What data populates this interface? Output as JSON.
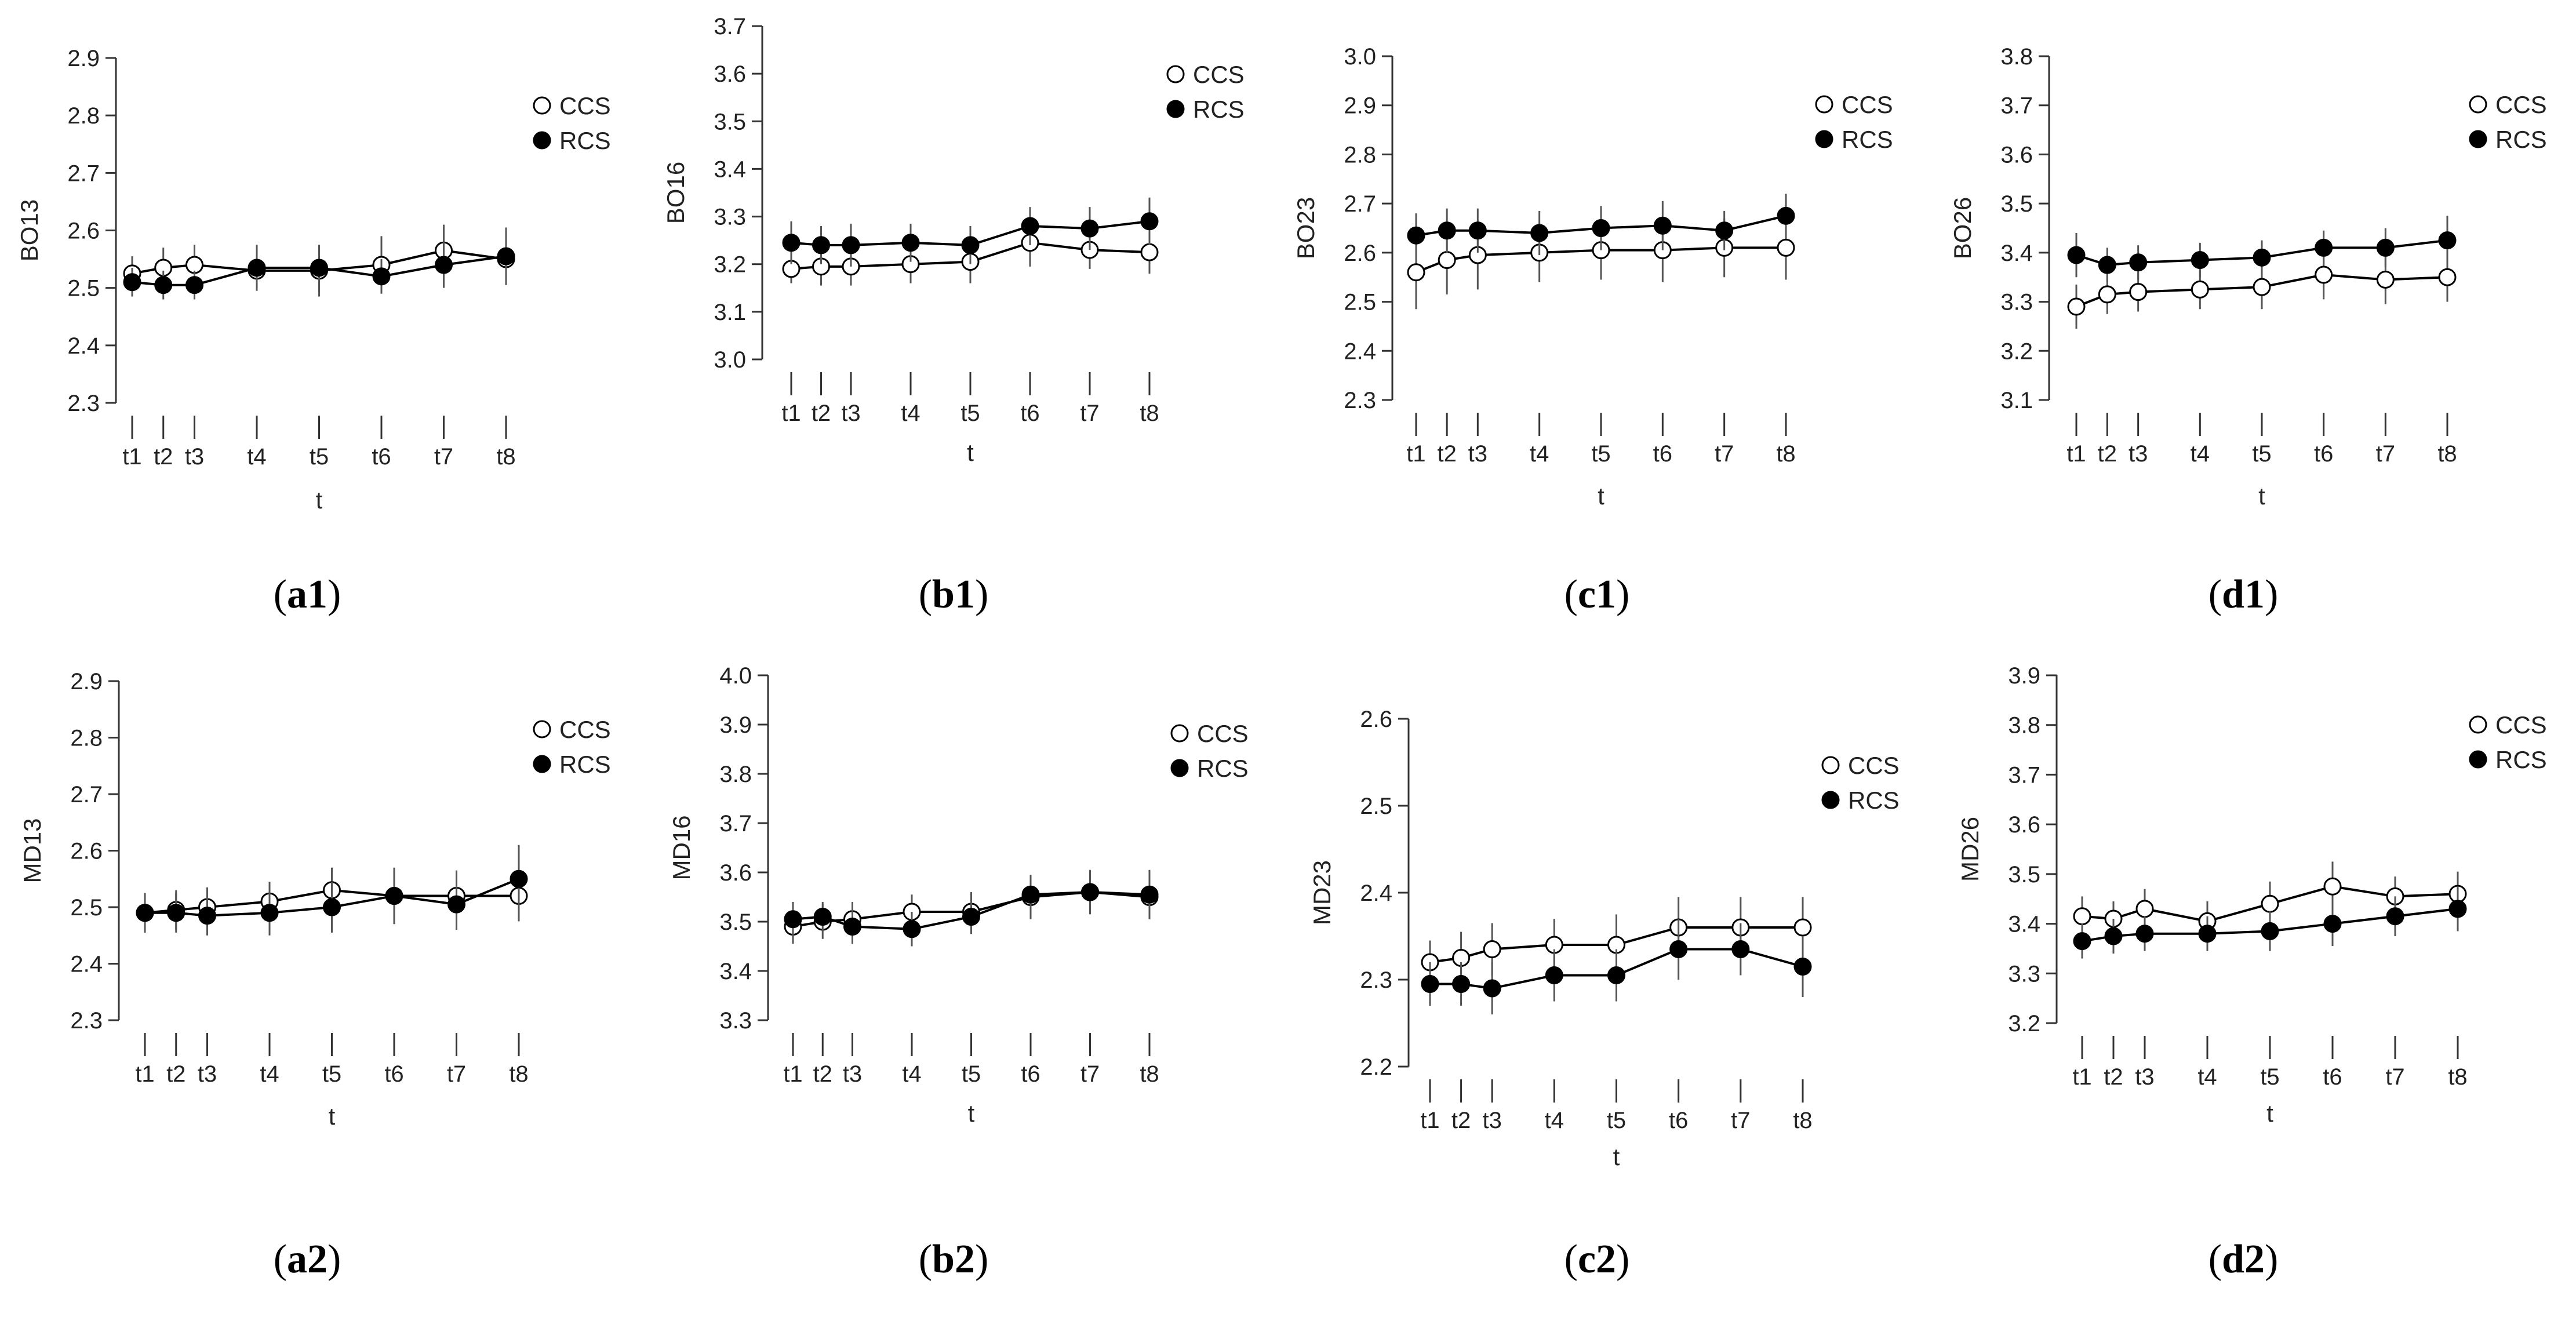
{
  "figure": {
    "legend": {
      "ccs_label": "CCS",
      "rcs_label": "RCS"
    },
    "x_title": "t",
    "x_categories": [
      "t1",
      "t2",
      "t3",
      "t4",
      "t5",
      "t6",
      "t7",
      "t8"
    ],
    "x_positions": [
      1,
      1.5,
      2,
      3,
      4,
      5,
      6,
      7
    ]
  },
  "chart_data": [
    {
      "id": "a1",
      "caption_letter": "a1",
      "type": "line",
      "ylabel": "BO13",
      "xlabel": "t",
      "yticks": [
        "2.3",
        "2.4",
        "2.5",
        "2.6",
        "2.7",
        "2.8",
        "2.9"
      ],
      "ylim": [
        2.3,
        2.9
      ],
      "categories": [
        "t1",
        "t2",
        "t3",
        "t4",
        "t5",
        "t6",
        "t7",
        "t8"
      ],
      "series": [
        {
          "name": "CCS",
          "values": [
            2.525,
            2.535,
            2.54,
            2.53,
            2.53,
            2.54,
            2.565,
            2.55
          ],
          "errors": [
            0.03,
            0.035,
            0.035,
            0.035,
            0.045,
            0.05,
            0.045,
            0.045
          ]
        },
        {
          "name": "RCS",
          "values": [
            2.51,
            2.505,
            2.505,
            2.535,
            2.535,
            2.52,
            2.54,
            2.555
          ],
          "errors": [
            0.025,
            0.025,
            0.025,
            0.04,
            0.03,
            0.03,
            0.04,
            0.05
          ]
        }
      ]
    },
    {
      "id": "b1",
      "caption_letter": "b1",
      "type": "line",
      "ylabel": "BO16",
      "xlabel": "t",
      "yticks": [
        "3.0",
        "3.1",
        "3.2",
        "3.3",
        "3.4",
        "3.5",
        "3.6",
        "3.7"
      ],
      "ylim": [
        3.0,
        3.7
      ],
      "categories": [
        "t1",
        "t2",
        "t3",
        "t4",
        "t5",
        "t6",
        "t7",
        "t8"
      ],
      "series": [
        {
          "name": "CCS",
          "values": [
            3.19,
            3.195,
            3.195,
            3.2,
            3.205,
            3.245,
            3.23,
            3.225
          ],
          "errors": [
            0.03,
            0.04,
            0.04,
            0.04,
            0.045,
            0.05,
            0.04,
            0.045
          ]
        },
        {
          "name": "RCS",
          "values": [
            3.245,
            3.24,
            3.24,
            3.245,
            3.24,
            3.28,
            3.275,
            3.29
          ],
          "errors": [
            0.045,
            0.04,
            0.045,
            0.04,
            0.04,
            0.04,
            0.045,
            0.05
          ]
        }
      ]
    },
    {
      "id": "c1",
      "caption_letter": "c1",
      "type": "line",
      "ylabel": "BO23",
      "xlabel": "t",
      "yticks": [
        "2.3",
        "2.4",
        "2.5",
        "2.6",
        "2.7",
        "2.8",
        "2.9",
        "3.0"
      ],
      "ylim": [
        2.3,
        3.0
      ],
      "categories": [
        "t1",
        "t2",
        "t3",
        "t4",
        "t5",
        "t6",
        "t7",
        "t8"
      ],
      "series": [
        {
          "name": "CCS",
          "values": [
            2.56,
            2.585,
            2.595,
            2.6,
            2.605,
            2.605,
            2.61,
            2.61
          ],
          "errors": [
            0.075,
            0.07,
            0.07,
            0.06,
            0.06,
            0.065,
            0.06,
            0.065
          ]
        },
        {
          "name": "RCS",
          "values": [
            2.635,
            2.645,
            2.645,
            2.64,
            2.65,
            2.655,
            2.645,
            2.675
          ],
          "errors": [
            0.045,
            0.045,
            0.045,
            0.045,
            0.045,
            0.05,
            0.04,
            0.045
          ]
        }
      ]
    },
    {
      "id": "d1",
      "caption_letter": "d1",
      "type": "line",
      "ylabel": "BO26",
      "xlabel": "t",
      "yticks": [
        "3.1",
        "3.2",
        "3.3",
        "3.4",
        "3.5",
        "3.6",
        "3.7",
        "3.8"
      ],
      "ylim": [
        3.1,
        3.8
      ],
      "categories": [
        "t1",
        "t2",
        "t3",
        "t4",
        "t5",
        "t6",
        "t7",
        "t8"
      ],
      "series": [
        {
          "name": "CCS",
          "values": [
            3.29,
            3.315,
            3.32,
            3.325,
            3.33,
            3.355,
            3.345,
            3.35
          ],
          "errors": [
            0.045,
            0.04,
            0.04,
            0.04,
            0.045,
            0.05,
            0.05,
            0.05
          ]
        },
        {
          "name": "RCS",
          "values": [
            3.395,
            3.375,
            3.38,
            3.385,
            3.39,
            3.41,
            3.41,
            3.425
          ],
          "errors": [
            0.045,
            0.035,
            0.035,
            0.035,
            0.035,
            0.035,
            0.04,
            0.05
          ]
        }
      ]
    },
    {
      "id": "a2",
      "caption_letter": "a2",
      "type": "line",
      "ylabel": "MD13",
      "xlabel": "t",
      "yticks": [
        "2.3",
        "2.4",
        "2.5",
        "2.6",
        "2.7",
        "2.8",
        "2.9"
      ],
      "ylim": [
        2.3,
        2.9
      ],
      "categories": [
        "t1",
        "t2",
        "t3",
        "t4",
        "t5",
        "t6",
        "t7",
        "t8"
      ],
      "series": [
        {
          "name": "CCS",
          "values": [
            2.49,
            2.495,
            2.5,
            2.51,
            2.53,
            2.52,
            2.52,
            2.52
          ],
          "errors": [
            0.035,
            0.035,
            0.035,
            0.035,
            0.04,
            0.045,
            0.045,
            0.045
          ]
        },
        {
          "name": "RCS",
          "values": [
            2.49,
            2.49,
            2.485,
            2.49,
            2.5,
            2.52,
            2.505,
            2.55
          ],
          "errors": [
            0.035,
            0.035,
            0.035,
            0.04,
            0.045,
            0.05,
            0.045,
            0.06
          ]
        }
      ]
    },
    {
      "id": "b2",
      "caption_letter": "b2",
      "type": "line",
      "ylabel": "MD16",
      "xlabel": "t",
      "yticks": [
        "3.3",
        "3.4",
        "3.5",
        "3.6",
        "3.7",
        "3.8",
        "3.9",
        "4.0"
      ],
      "ylim": [
        3.3,
        4.0
      ],
      "categories": [
        "t1",
        "t2",
        "t3",
        "t4",
        "t5",
        "t6",
        "t7",
        "t8"
      ],
      "series": [
        {
          "name": "CCS",
          "values": [
            3.49,
            3.5,
            3.505,
            3.52,
            3.52,
            3.55,
            3.56,
            3.55
          ],
          "errors": [
            0.035,
            0.035,
            0.035,
            0.035,
            0.04,
            0.045,
            0.045,
            0.045
          ]
        },
        {
          "name": "RCS",
          "values": [
            3.505,
            3.51,
            3.49,
            3.485,
            3.51,
            3.555,
            3.56,
            3.555
          ],
          "errors": [
            0.035,
            0.03,
            0.035,
            0.035,
            0.035,
            0.04,
            0.04,
            0.05
          ]
        }
      ]
    },
    {
      "id": "c2",
      "caption_letter": "c2",
      "type": "line",
      "ylabel": "MD23",
      "xlabel": "t",
      "yticks": [
        "2.2",
        "2.3",
        "2.4",
        "2.5",
        "2.6"
      ],
      "ylim": [
        2.2,
        2.6
      ],
      "categories": [
        "t1",
        "t2",
        "t3",
        "t4",
        "t5",
        "t6",
        "t7",
        "t8"
      ],
      "series": [
        {
          "name": "CCS",
          "values": [
            2.32,
            2.325,
            2.335,
            2.34,
            2.34,
            2.36,
            2.36,
            2.36
          ],
          "errors": [
            0.025,
            0.03,
            0.03,
            0.03,
            0.035,
            0.035,
            0.035,
            0.035
          ]
        },
        {
          "name": "RCS",
          "values": [
            2.295,
            2.295,
            2.29,
            2.305,
            2.305,
            2.335,
            2.335,
            2.315
          ],
          "errors": [
            0.025,
            0.025,
            0.03,
            0.03,
            0.03,
            0.035,
            0.03,
            0.035
          ]
        }
      ]
    },
    {
      "id": "d2",
      "caption_letter": "d2",
      "type": "line",
      "ylabel": "MD26",
      "xlabel": "t",
      "yticks": [
        "3.2",
        "3.3",
        "3.4",
        "3.5",
        "3.6",
        "3.7",
        "3.8",
        "3.9"
      ],
      "ylim": [
        3.2,
        3.9
      ],
      "categories": [
        "t1",
        "t2",
        "t3",
        "t4",
        "t5",
        "t6",
        "t7",
        "t8"
      ],
      "series": [
        {
          "name": "CCS",
          "values": [
            3.415,
            3.41,
            3.43,
            3.405,
            3.44,
            3.475,
            3.455,
            3.46
          ],
          "errors": [
            0.04,
            0.035,
            0.04,
            0.04,
            0.045,
            0.05,
            0.04,
            0.045
          ]
        },
        {
          "name": "RCS",
          "values": [
            3.365,
            3.375,
            3.38,
            3.38,
            3.385,
            3.4,
            3.415,
            3.43
          ],
          "errors": [
            0.035,
            0.035,
            0.035,
            0.035,
            0.04,
            0.045,
            0.04,
            0.045
          ]
        }
      ]
    }
  ]
}
